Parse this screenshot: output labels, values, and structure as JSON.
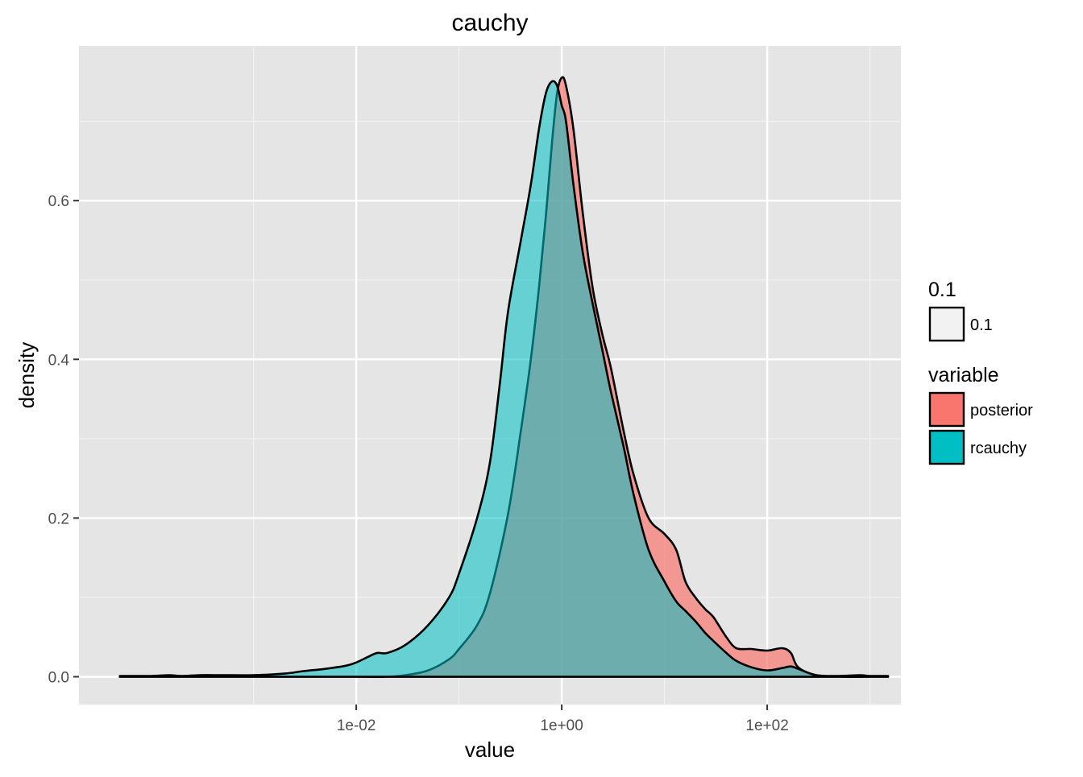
{
  "chart_data": {
    "type": "area",
    "title": "cauchy",
    "xlabel": "value",
    "ylabel": "density",
    "x_scale": "log10",
    "xlim": [
      2e-05,
      2000
    ],
    "ylim": [
      -0.035,
      0.795
    ],
    "grid": true,
    "x_ticks": [
      {
        "value": 0.01,
        "label": "1e-02"
      },
      {
        "value": 1,
        "label": "1e+00"
      },
      {
        "value": 100,
        "label": "1e+02"
      }
    ],
    "x_minor_ticks": [
      0.001,
      0.1,
      10,
      1000
    ],
    "y_ticks": [
      {
        "value": 0.0,
        "label": "0.0"
      },
      {
        "value": 0.2,
        "label": "0.2"
      },
      {
        "value": 0.4,
        "label": "0.4"
      },
      {
        "value": 0.6,
        "label": "0.6"
      }
    ],
    "y_minor_ticks": [
      0.1,
      0.3,
      0.5,
      0.7
    ],
    "legend": {
      "placement": "right",
      "groups": [
        {
          "title": "0.1",
          "items": [
            {
              "label": "0.1",
              "color": "#f2f2f2"
            }
          ]
        },
        {
          "title": "variable",
          "items": [
            {
              "label": "posterior",
              "color": "#F8766D"
            },
            {
              "label": "rcauchy",
              "color": "#00BFC4"
            }
          ]
        }
      ]
    },
    "series": [
      {
        "name": "posterior",
        "color": "#F8766D",
        "opacity": 0.7,
        "x": [
          5e-05,
          0.0001,
          0.0002,
          0.0005,
          0.001,
          0.002,
          0.005,
          0.01,
          0.02,
          0.03,
          0.05,
          0.08,
          0.1,
          0.15,
          0.2,
          0.3,
          0.4,
          0.5,
          0.6,
          0.7,
          0.8,
          0.9,
          1.0,
          1.1,
          1.3,
          1.6,
          2.0,
          2.5,
          3.0,
          4.0,
          5.0,
          7.0,
          10,
          13,
          16,
          20,
          25,
          30,
          40,
          50,
          70,
          100,
          140,
          170,
          200,
          300,
          500,
          1000,
          1500
        ],
        "y": [
          0.0,
          0.0,
          0.0,
          0.0,
          0.0,
          0.0,
          0.0,
          0.0,
          0.0,
          0.002,
          0.008,
          0.022,
          0.035,
          0.065,
          0.105,
          0.205,
          0.31,
          0.4,
          0.49,
          0.58,
          0.67,
          0.735,
          0.755,
          0.745,
          0.69,
          0.585,
          0.49,
          0.43,
          0.39,
          0.31,
          0.255,
          0.2,
          0.18,
          0.16,
          0.12,
          0.1,
          0.085,
          0.075,
          0.05,
          0.036,
          0.035,
          0.033,
          0.036,
          0.03,
          0.012,
          0.002,
          0.0,
          0.0,
          0.0
        ]
      },
      {
        "name": "rcauchy",
        "color": "#00BFC4",
        "opacity": 0.55,
        "x": [
          5e-05,
          0.0001,
          0.00015,
          0.0002,
          0.0003,
          0.0005,
          0.001,
          0.002,
          0.003,
          0.005,
          0.008,
          0.01,
          0.013,
          0.016,
          0.02,
          0.03,
          0.05,
          0.08,
          0.1,
          0.15,
          0.2,
          0.25,
          0.3,
          0.4,
          0.5,
          0.6,
          0.7,
          0.8,
          0.9,
          1.0,
          1.1,
          1.3,
          1.6,
          2.0,
          2.5,
          3.0,
          4.0,
          5.0,
          7.0,
          10,
          13,
          16,
          20,
          25,
          30,
          40,
          50,
          70,
          100,
          140,
          170,
          200,
          300,
          500,
          800,
          1000,
          1500
        ],
        "y": [
          0.001,
          0.001,
          0.002,
          0.001,
          0.002,
          0.002,
          0.002,
          0.004,
          0.007,
          0.01,
          0.014,
          0.018,
          0.025,
          0.03,
          0.03,
          0.04,
          0.065,
          0.1,
          0.13,
          0.2,
          0.27,
          0.37,
          0.46,
          0.55,
          0.62,
          0.69,
          0.735,
          0.75,
          0.745,
          0.72,
          0.7,
          0.62,
          0.535,
          0.47,
          0.41,
          0.36,
          0.29,
          0.23,
          0.16,
          0.12,
          0.095,
          0.083,
          0.07,
          0.055,
          0.045,
          0.03,
          0.02,
          0.012,
          0.008,
          0.011,
          0.013,
          0.01,
          0.002,
          0.001,
          0.002,
          0.001,
          0.001
        ]
      }
    ]
  }
}
